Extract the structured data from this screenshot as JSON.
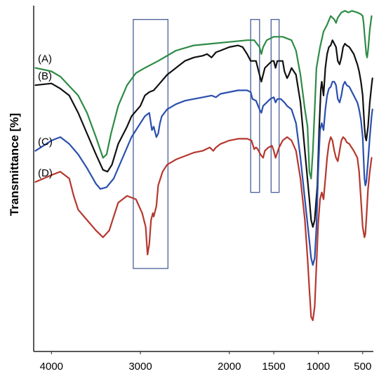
{
  "chart_data": {
    "type": "line",
    "title": "",
    "xlabel": "",
    "ylabel": "Transmittance [%]",
    "xlim": [
      4200,
      380
    ],
    "ylim": [
      0,
      100
    ],
    "x_reversed": true,
    "x_ticks": [
      4000,
      3000,
      2500,
      2000,
      1500,
      1000,
      500
    ],
    "x_tick_labels": [
      "4000",
      "3000",
      "2000",
      "1500",
      "1000",
      "500"
    ],
    "x_tick_values": [
      4000,
      3000,
      2000,
      1500,
      1000,
      500
    ],
    "grid": false,
    "legend": "inline-left",
    "highlight_regions": [
      {
        "x_from": 3080,
        "x_to": 2690,
        "y_from": 24,
        "y_to": 96
      },
      {
        "x_from": 1760,
        "x_to": 1660,
        "y_from": 46,
        "y_to": 96
      },
      {
        "x_from": 1530,
        "x_to": 1440,
        "y_from": 46,
        "y_to": 96
      }
    ],
    "series": [
      {
        "name": "(A)",
        "color": "#2e8b46",
        "points": [
          [
            4180,
            82
          ],
          [
            4000,
            81
          ],
          [
            3900,
            79.5
          ],
          [
            3700,
            74
          ],
          [
            3600,
            69
          ],
          [
            3500,
            62
          ],
          [
            3420,
            56
          ],
          [
            3380,
            57
          ],
          [
            3330,
            63
          ],
          [
            3250,
            71
          ],
          [
            3150,
            77
          ],
          [
            3050,
            80.5
          ],
          [
            2950,
            82
          ],
          [
            2800,
            84
          ],
          [
            2600,
            87
          ],
          [
            2400,
            88.5
          ],
          [
            2200,
            89
          ],
          [
            2000,
            89.5
          ],
          [
            1800,
            90
          ],
          [
            1720,
            90
          ],
          [
            1660,
            88
          ],
          [
            1640,
            86
          ],
          [
            1620,
            88
          ],
          [
            1580,
            90
          ],
          [
            1500,
            91
          ],
          [
            1400,
            91
          ],
          [
            1300,
            90
          ],
          [
            1250,
            87
          ],
          [
            1200,
            80
          ],
          [
            1150,
            70
          ],
          [
            1120,
            65
          ],
          [
            1100,
            52
          ],
          [
            1080,
            50
          ],
          [
            1060,
            58
          ],
          [
            1040,
            70
          ],
          [
            1020,
            82
          ],
          [
            980,
            88
          ],
          [
            940,
            92.5
          ],
          [
            900,
            94.5
          ],
          [
            860,
            97
          ],
          [
            820,
            96
          ],
          [
            800,
            95
          ],
          [
            780,
            96.5
          ],
          [
            740,
            98
          ],
          [
            700,
            98.5
          ],
          [
            660,
            98
          ],
          [
            620,
            98.5
          ],
          [
            560,
            98
          ],
          [
            520,
            97.5
          ],
          [
            500,
            97
          ],
          [
            490,
            95
          ],
          [
            480,
            92
          ],
          [
            470,
            89
          ],
          [
            460,
            86
          ],
          [
            450,
            85
          ],
          [
            440,
            87
          ],
          [
            420,
            93
          ],
          [
            400,
            97
          ]
        ]
      },
      {
        "name": "(B)",
        "color": "#111111",
        "points": [
          [
            4180,
            77
          ],
          [
            4000,
            77.5
          ],
          [
            3900,
            76
          ],
          [
            3800,
            74
          ],
          [
            3700,
            69
          ],
          [
            3600,
            63
          ],
          [
            3500,
            57
          ],
          [
            3420,
            52.5
          ],
          [
            3370,
            52
          ],
          [
            3320,
            54
          ],
          [
            3250,
            60
          ],
          [
            3150,
            65
          ],
          [
            3100,
            68
          ],
          [
            3000,
            71
          ],
          [
            2950,
            74
          ],
          [
            2900,
            75
          ],
          [
            2850,
            75.5
          ],
          [
            2800,
            77
          ],
          [
            2700,
            80
          ],
          [
            2600,
            82
          ],
          [
            2500,
            84
          ],
          [
            2400,
            85
          ],
          [
            2300,
            85.5
          ],
          [
            2250,
            86
          ],
          [
            2200,
            85
          ],
          [
            2150,
            86.5
          ],
          [
            2100,
            87
          ],
          [
            2000,
            88
          ],
          [
            1900,
            88.5
          ],
          [
            1850,
            88
          ],
          [
            1800,
            86
          ],
          [
            1760,
            84
          ],
          [
            1700,
            84
          ],
          [
            1680,
            82
          ],
          [
            1660,
            80
          ],
          [
            1640,
            78
          ],
          [
            1620,
            80
          ],
          [
            1600,
            82
          ],
          [
            1560,
            83
          ],
          [
            1520,
            84
          ],
          [
            1500,
            84
          ],
          [
            1480,
            82
          ],
          [
            1460,
            84
          ],
          [
            1400,
            84
          ],
          [
            1380,
            81
          ],
          [
            1350,
            79
          ],
          [
            1330,
            80
          ],
          [
            1300,
            82
          ],
          [
            1250,
            80
          ],
          [
            1200,
            72
          ],
          [
            1150,
            58
          ],
          [
            1100,
            44
          ],
          [
            1080,
            38
          ],
          [
            1060,
            36
          ],
          [
            1040,
            38
          ],
          [
            1010,
            48
          ],
          [
            990,
            64
          ],
          [
            970,
            76
          ],
          [
            960,
            78
          ],
          [
            940,
            74
          ],
          [
            920,
            82
          ],
          [
            900,
            86
          ],
          [
            880,
            88
          ],
          [
            860,
            88.5
          ],
          [
            840,
            90
          ],
          [
            820,
            89
          ],
          [
            800,
            88
          ],
          [
            780,
            84
          ],
          [
            760,
            83
          ],
          [
            740,
            85
          ],
          [
            720,
            88
          ],
          [
            700,
            89
          ],
          [
            680,
            88.5
          ],
          [
            650,
            88
          ],
          [
            600,
            86
          ],
          [
            560,
            83
          ],
          [
            540,
            81
          ],
          [
            520,
            78
          ],
          [
            500,
            74
          ],
          [
            480,
            65
          ],
          [
            470,
            62
          ],
          [
            460,
            61
          ],
          [
            440,
            65
          ],
          [
            420,
            72
          ],
          [
            400,
            77
          ],
          [
            390,
            79
          ]
        ]
      },
      {
        "name": "(C)",
        "color": "#2a4fae",
        "points": [
          [
            4180,
            58
          ],
          [
            4000,
            61
          ],
          [
            3900,
            62
          ],
          [
            3800,
            60
          ],
          [
            3700,
            57
          ],
          [
            3600,
            53
          ],
          [
            3500,
            48.5
          ],
          [
            3450,
            47
          ],
          [
            3380,
            47.5
          ],
          [
            3300,
            50
          ],
          [
            3200,
            56
          ],
          [
            3100,
            62
          ],
          [
            3050,
            64
          ],
          [
            3000,
            66
          ],
          [
            2950,
            68
          ],
          [
            2900,
            69
          ],
          [
            2870,
            64
          ],
          [
            2850,
            65
          ],
          [
            2820,
            62
          ],
          [
            2800,
            63
          ],
          [
            2780,
            66
          ],
          [
            2760,
            68
          ],
          [
            2700,
            70
          ],
          [
            2600,
            71.5
          ],
          [
            2500,
            72.5
          ],
          [
            2400,
            73
          ],
          [
            2300,
            73.5
          ],
          [
            2200,
            74
          ],
          [
            2150,
            73.5
          ],
          [
            2100,
            74.5
          ],
          [
            2000,
            75
          ],
          [
            1900,
            75.5
          ],
          [
            1800,
            75.5
          ],
          [
            1760,
            75
          ],
          [
            1740,
            73
          ],
          [
            1700,
            72.5
          ],
          [
            1660,
            70
          ],
          [
            1640,
            69
          ],
          [
            1620,
            71
          ],
          [
            1580,
            72
          ],
          [
            1540,
            73
          ],
          [
            1500,
            73.5
          ],
          [
            1480,
            72
          ],
          [
            1460,
            73
          ],
          [
            1420,
            73
          ],
          [
            1380,
            72
          ],
          [
            1350,
            71
          ],
          [
            1300,
            70
          ],
          [
            1250,
            66
          ],
          [
            1200,
            56
          ],
          [
            1150,
            44
          ],
          [
            1100,
            32
          ],
          [
            1080,
            27
          ],
          [
            1060,
            25
          ],
          [
            1040,
            27
          ],
          [
            1020,
            36
          ],
          [
            1000,
            52
          ],
          [
            980,
            64
          ],
          [
            960,
            66
          ],
          [
            940,
            64
          ],
          [
            920,
            70
          ],
          [
            900,
            74
          ],
          [
            880,
            76
          ],
          [
            860,
            76.5
          ],
          [
            840,
            78
          ],
          [
            820,
            78
          ],
          [
            800,
            77
          ],
          [
            780,
            73
          ],
          [
            760,
            72
          ],
          [
            740,
            74
          ],
          [
            720,
            77
          ],
          [
            700,
            78
          ],
          [
            680,
            77
          ],
          [
            650,
            76.5
          ],
          [
            600,
            74
          ],
          [
            560,
            72
          ],
          [
            540,
            70
          ],
          [
            520,
            67
          ],
          [
            500,
            62
          ],
          [
            480,
            50
          ],
          [
            470,
            48
          ],
          [
            460,
            49
          ],
          [
            440,
            55
          ],
          [
            420,
            62
          ],
          [
            400,
            68
          ],
          [
            390,
            70
          ]
        ]
      },
      {
        "name": "(D)",
        "color": "#b5372e",
        "points": [
          [
            4180,
            49
          ],
          [
            4000,
            51
          ],
          [
            3900,
            52
          ],
          [
            3800,
            50
          ],
          [
            3750,
            45
          ],
          [
            3700,
            41
          ],
          [
            3600,
            38
          ],
          [
            3500,
            35
          ],
          [
            3420,
            33
          ],
          [
            3350,
            35
          ],
          [
            3300,
            39
          ],
          [
            3250,
            43
          ],
          [
            3150,
            45
          ],
          [
            3050,
            44
          ],
          [
            2980,
            40
          ],
          [
            2940,
            36
          ],
          [
            2920,
            28
          ],
          [
            2900,
            31
          ],
          [
            2880,
            38
          ],
          [
            2860,
            40
          ],
          [
            2850,
            39
          ],
          [
            2820,
            42
          ],
          [
            2800,
            48
          ],
          [
            2750,
            52
          ],
          [
            2700,
            54
          ],
          [
            2600,
            55.5
          ],
          [
            2500,
            56.5
          ],
          [
            2400,
            57.5
          ],
          [
            2300,
            58
          ],
          [
            2220,
            59
          ],
          [
            2180,
            58
          ],
          [
            2150,
            59
          ],
          [
            2100,
            60
          ],
          [
            2000,
            61
          ],
          [
            1900,
            61.5
          ],
          [
            1800,
            61.5
          ],
          [
            1750,
            61
          ],
          [
            1720,
            58.5
          ],
          [
            1700,
            59
          ],
          [
            1680,
            58.5
          ],
          [
            1650,
            57
          ],
          [
            1620,
            56
          ],
          [
            1600,
            58
          ],
          [
            1560,
            59
          ],
          [
            1520,
            59.5
          ],
          [
            1500,
            58
          ],
          [
            1480,
            56
          ],
          [
            1460,
            57.5
          ],
          [
            1440,
            59
          ],
          [
            1400,
            61
          ],
          [
            1350,
            62
          ],
          [
            1300,
            61
          ],
          [
            1250,
            58
          ],
          [
            1200,
            50
          ],
          [
            1150,
            38
          ],
          [
            1120,
            27
          ],
          [
            1100,
            18
          ],
          [
            1080,
            10
          ],
          [
            1060,
            9
          ],
          [
            1040,
            13
          ],
          [
            1020,
            25
          ],
          [
            1000,
            37
          ],
          [
            980,
            44
          ],
          [
            960,
            46
          ],
          [
            940,
            44
          ],
          [
            920,
            50
          ],
          [
            900,
            56
          ],
          [
            880,
            60
          ],
          [
            860,
            62
          ],
          [
            840,
            61
          ],
          [
            820,
            58
          ],
          [
            800,
            56
          ],
          [
            780,
            55
          ],
          [
            760,
            58
          ],
          [
            740,
            61
          ],
          [
            720,
            62
          ],
          [
            700,
            61.5
          ],
          [
            680,
            60.5
          ],
          [
            650,
            60
          ],
          [
            600,
            58
          ],
          [
            560,
            56
          ],
          [
            540,
            52
          ],
          [
            520,
            44
          ],
          [
            500,
            36
          ],
          [
            480,
            33
          ],
          [
            470,
            34
          ],
          [
            460,
            38
          ],
          [
            440,
            47
          ],
          [
            420,
            52
          ],
          [
            400,
            56
          ]
        ]
      }
    ]
  }
}
